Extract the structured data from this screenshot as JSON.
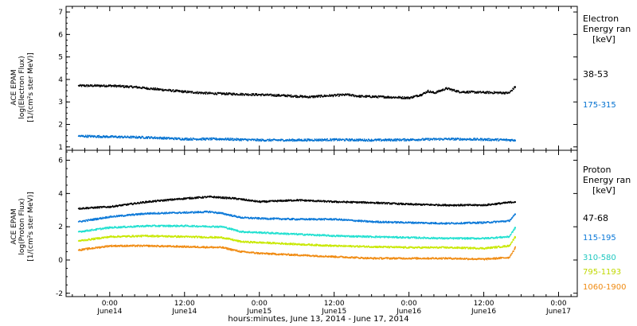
{
  "xaxis": {
    "title": "hours:minutes, June 13, 2014 - June 17, 2014",
    "ticks": [
      {
        "h": 24,
        "time": "0:00",
        "date": "June14"
      },
      {
        "h": 36,
        "time": "12:00",
        "date": "June14"
      },
      {
        "h": 48,
        "time": "0:00",
        "date": "June15"
      },
      {
        "h": 60,
        "time": "12:00",
        "date": "June15"
      },
      {
        "h": 72,
        "time": "0:00",
        "date": "June16"
      },
      {
        "h": 84,
        "time": "12:00",
        "date": "June16"
      },
      {
        "h": 96,
        "time": "0:00",
        "date": "June17"
      }
    ]
  },
  "electron": {
    "ylabel_lines": [
      "ACE EPAM",
      "log(Electron Flux)",
      "[1/(cm²s ster MeV)]"
    ],
    "legend_title": [
      "Electron",
      "Energy ran",
      "[keV]"
    ],
    "ylim": [
      0.85,
      7.25
    ],
    "yticks": [
      1,
      2,
      3,
      4,
      5,
      6,
      7
    ],
    "series": [
      {
        "name": "38-53",
        "color": "#000000",
        "points": [
          [
            19,
            3.72
          ],
          [
            24,
            3.72
          ],
          [
            28,
            3.66
          ],
          [
            32,
            3.55
          ],
          [
            36,
            3.45
          ],
          [
            40,
            3.38
          ],
          [
            44,
            3.35
          ],
          [
            48,
            3.32
          ],
          [
            52,
            3.28
          ],
          [
            56,
            3.22
          ],
          [
            58,
            3.26
          ],
          [
            62,
            3.32
          ],
          [
            64,
            3.25
          ],
          [
            68,
            3.22
          ],
          [
            72,
            3.18
          ],
          [
            74,
            3.33
          ],
          [
            75,
            3.48
          ],
          [
            76,
            3.4
          ],
          [
            78,
            3.6
          ],
          [
            80,
            3.45
          ],
          [
            84,
            3.42
          ],
          [
            88,
            3.4
          ],
          [
            89,
            3.68
          ]
        ]
      },
      {
        "name": "175-315",
        "color": "#0070d0",
        "points": [
          [
            19,
            1.48
          ],
          [
            24,
            1.45
          ],
          [
            30,
            1.42
          ],
          [
            36,
            1.35
          ],
          [
            42,
            1.35
          ],
          [
            48,
            1.3
          ],
          [
            54,
            1.3
          ],
          [
            60,
            1.32
          ],
          [
            66,
            1.3
          ],
          [
            72,
            1.32
          ],
          [
            78,
            1.35
          ],
          [
            84,
            1.33
          ],
          [
            89,
            1.3
          ]
        ]
      }
    ]
  },
  "proton": {
    "ylabel_lines": [
      "ACE EPAM",
      "log(Proton Flux)",
      "[1/(cm²s ster MeV)]"
    ],
    "legend_title": [
      "Proton",
      "Energy ran",
      "[keV]"
    ],
    "ylim": [
      -2.2,
      6.6
    ],
    "yticks": [
      -2,
      0,
      2,
      4,
      6
    ],
    "series": [
      {
        "name": "47-68",
        "color": "#000000",
        "points": [
          [
            19,
            3.1
          ],
          [
            24,
            3.2
          ],
          [
            30,
            3.5
          ],
          [
            36,
            3.7
          ],
          [
            40,
            3.8
          ],
          [
            44,
            3.7
          ],
          [
            48,
            3.5
          ],
          [
            54,
            3.6
          ],
          [
            60,
            3.5
          ],
          [
            66,
            3.45
          ],
          [
            72,
            3.35
          ],
          [
            78,
            3.3
          ],
          [
            84,
            3.3
          ],
          [
            89,
            3.5
          ]
        ]
      },
      {
        "name": "115-195",
        "color": "#0a78d8",
        "points": [
          [
            19,
            2.3
          ],
          [
            24,
            2.6
          ],
          [
            30,
            2.8
          ],
          [
            36,
            2.85
          ],
          [
            40,
            2.9
          ],
          [
            42,
            2.8
          ],
          [
            45,
            2.55
          ],
          [
            48,
            2.5
          ],
          [
            54,
            2.45
          ],
          [
            60,
            2.45
          ],
          [
            66,
            2.3
          ],
          [
            72,
            2.25
          ],
          [
            78,
            2.2
          ],
          [
            84,
            2.25
          ],
          [
            88,
            2.35
          ],
          [
            89,
            2.75
          ]
        ]
      },
      {
        "name": "310-580",
        "color": "#20e0d0",
        "points": [
          [
            19,
            1.7
          ],
          [
            24,
            1.95
          ],
          [
            30,
            2.05
          ],
          [
            36,
            2.05
          ],
          [
            42,
            2.0
          ],
          [
            45,
            1.7
          ],
          [
            48,
            1.65
          ],
          [
            54,
            1.55
          ],
          [
            60,
            1.45
          ],
          [
            66,
            1.4
          ],
          [
            72,
            1.35
          ],
          [
            78,
            1.3
          ],
          [
            84,
            1.3
          ],
          [
            88,
            1.4
          ],
          [
            89,
            1.95
          ]
        ]
      },
      {
        "name": "795-1193",
        "color": "#c8e800",
        "points": [
          [
            19,
            1.15
          ],
          [
            24,
            1.4
          ],
          [
            30,
            1.45
          ],
          [
            36,
            1.4
          ],
          [
            42,
            1.35
          ],
          [
            45,
            1.1
          ],
          [
            48,
            1.05
          ],
          [
            54,
            0.95
          ],
          [
            60,
            0.85
          ],
          [
            66,
            0.8
          ],
          [
            72,
            0.75
          ],
          [
            78,
            0.75
          ],
          [
            84,
            0.7
          ],
          [
            88,
            0.85
          ],
          [
            89,
            1.4
          ]
        ]
      },
      {
        "name": "1060-1900",
        "color": "#f08a10",
        "points": [
          [
            19,
            0.6
          ],
          [
            24,
            0.85
          ],
          [
            30,
            0.85
          ],
          [
            36,
            0.8
          ],
          [
            42,
            0.75
          ],
          [
            45,
            0.5
          ],
          [
            48,
            0.4
          ],
          [
            54,
            0.3
          ],
          [
            60,
            0.2
          ],
          [
            66,
            0.1
          ],
          [
            72,
            0.1
          ],
          [
            78,
            0.1
          ],
          [
            84,
            0.05
          ],
          [
            88,
            0.15
          ],
          [
            89,
            0.75
          ]
        ]
      }
    ]
  },
  "chart_data": [
    {
      "type": "scatter",
      "title": "",
      "xlabel": "hours:minutes, June 13, 2014 - June 17, 2014",
      "ylabel": "ACE EPAM log(Electron Flux) [1/(cm²s ster MeV)]",
      "xlim": [
        "2014-06-13 17:00",
        "2014-06-17 03:00"
      ],
      "ylim": [
        0.85,
        7.25
      ],
      "legend": "right",
      "series": [
        {
          "name": "38-53",
          "x": [
            "2014-06-13 19:00",
            "2014-06-14 12:00",
            "2014-06-15 12:00",
            "2014-06-16 00:00",
            "2014-06-16 17:00"
          ],
          "y": [
            3.72,
            3.45,
            3.22,
            3.18,
            3.68
          ]
        },
        {
          "name": "175-315",
          "x": [
            "2014-06-13 19:00",
            "2014-06-14 12:00",
            "2014-06-15 12:00",
            "2014-06-16 00:00",
            "2014-06-16 17:00"
          ],
          "y": [
            1.48,
            1.35,
            1.32,
            1.32,
            1.3
          ]
        }
      ]
    },
    {
      "type": "scatter",
      "title": "",
      "xlabel": "hours:minutes, June 13, 2014 - June 17, 2014",
      "ylabel": "ACE EPAM log(Proton Flux) [1/(cm²s ster MeV)]",
      "xlim": [
        "2014-06-13 17:00",
        "2014-06-17 03:00"
      ],
      "ylim": [
        -2.2,
        6.6
      ],
      "legend": "right",
      "series": [
        {
          "name": "47-68",
          "x": [
            "2014-06-13 19:00",
            "2014-06-14 16:00",
            "2014-06-15 12:00",
            "2014-06-16 12:00",
            "2014-06-16 17:00"
          ],
          "y": [
            3.1,
            3.8,
            3.5,
            3.3,
            3.5
          ]
        },
        {
          "name": "115-195",
          "x": [
            "2014-06-13 19:00",
            "2014-06-14 16:00",
            "2014-06-15 12:00",
            "2014-06-16 12:00",
            "2014-06-16 17:00"
          ],
          "y": [
            2.3,
            2.9,
            2.45,
            2.25,
            2.75
          ]
        },
        {
          "name": "310-580",
          "x": [
            "2014-06-13 19:00",
            "2014-06-14 12:00",
            "2014-06-15 12:00",
            "2014-06-16 12:00",
            "2014-06-16 17:00"
          ],
          "y": [
            1.7,
            2.05,
            1.45,
            1.3,
            1.95
          ]
        },
        {
          "name": "795-1193",
          "x": [
            "2014-06-13 19:00",
            "2014-06-14 12:00",
            "2014-06-15 12:00",
            "2014-06-16 12:00",
            "2014-06-16 17:00"
          ],
          "y": [
            1.15,
            1.4,
            0.85,
            0.7,
            1.4
          ]
        },
        {
          "name": "1060-1900",
          "x": [
            "2014-06-13 19:00",
            "2014-06-14 12:00",
            "2014-06-15 12:00",
            "2014-06-16 12:00",
            "2014-06-16 17:00"
          ],
          "y": [
            0.6,
            0.8,
            0.2,
            0.05,
            0.75
          ]
        }
      ]
    }
  ]
}
